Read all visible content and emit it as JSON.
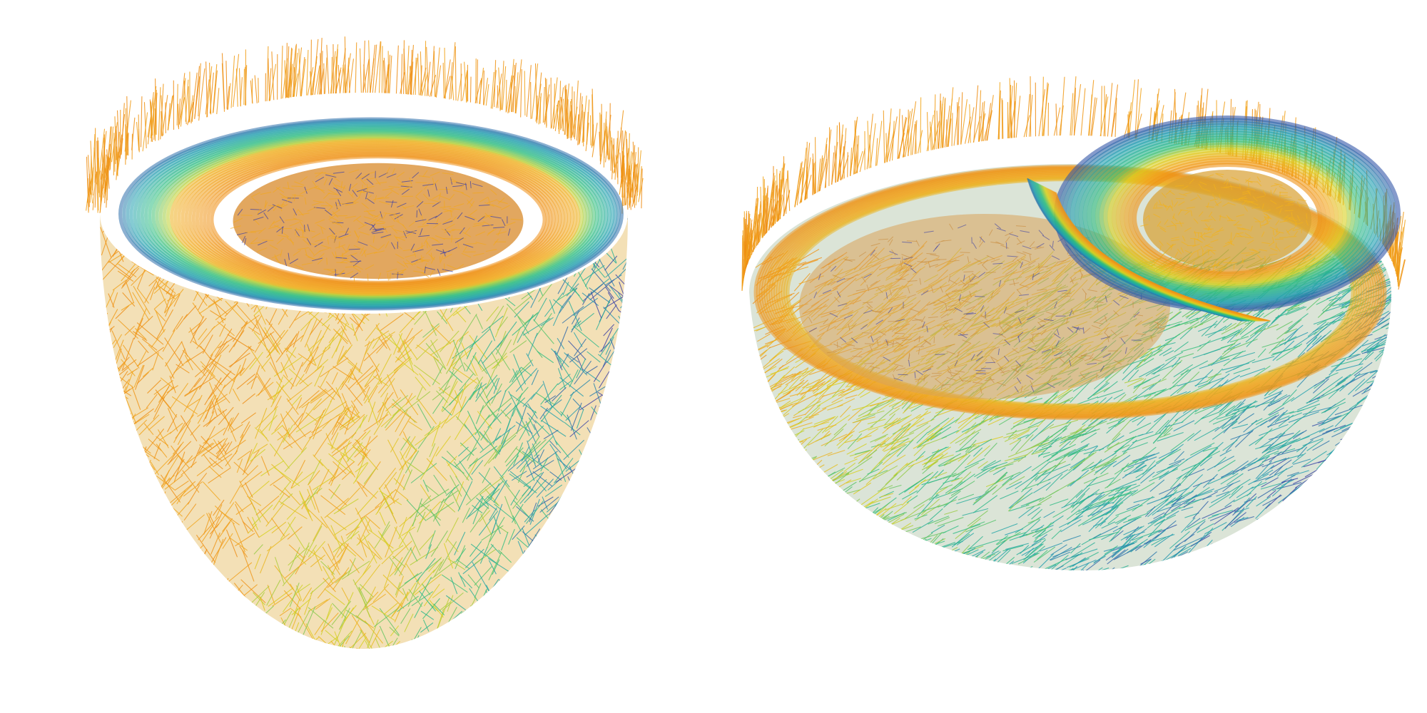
{
  "figure": {
    "panels": [
      {
        "id": "left",
        "subject": "left-ventricle-fiber-field",
        "view": "oblique-top",
        "colormap": [
          "#3b3fa6",
          "#1f9fb0",
          "#2fbf7f",
          "#d9d21f",
          "#f2a81d",
          "#ee8a12"
        ]
      },
      {
        "id": "right",
        "subject": "biventricular-fiber-field",
        "view": "oblique-top",
        "colormap": [
          "#3b3fa6",
          "#1f9fb0",
          "#2fbf7f",
          "#d9d21f",
          "#f2a81d",
          "#ee8a12"
        ]
      }
    ],
    "background": "#ffffff",
    "surface_tint": "#c8c8c8"
  }
}
